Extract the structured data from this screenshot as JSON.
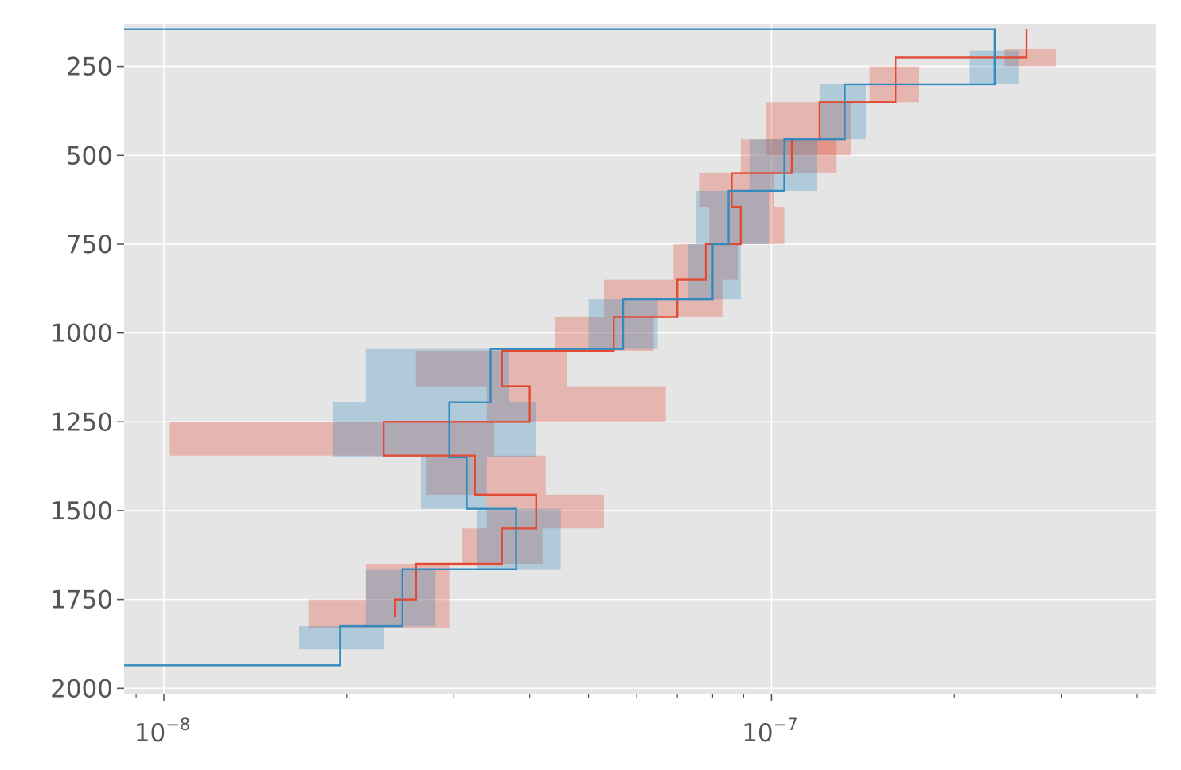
{
  "chart_data": {
    "type": "line",
    "title": "",
    "xlabel": "",
    "ylabel": "",
    "x_scale": "log",
    "y_inverted": true,
    "grid": true,
    "xlim": [
      8.6e-09,
      4.3e-07
    ],
    "ylim": [
      2015,
      130
    ],
    "x_ticks": [
      {
        "value": 1e-08,
        "base": "10",
        "exp": "−8"
      },
      {
        "value": 1e-07,
        "base": "10",
        "exp": "−7"
      }
    ],
    "y_ticks": [
      250,
      500,
      750,
      1000,
      1250,
      1500,
      1750,
      2000
    ],
    "y_tick_labels": [
      "250",
      "500",
      "750",
      "1000",
      "1250",
      "1500",
      "1750",
      "2000"
    ],
    "series": [
      {
        "color": "#E24A33",
        "step_points": [
          [
            2.63e-07,
            145
          ],
          [
            2.63e-07,
            225
          ],
          [
            1.6e-07,
            225
          ],
          [
            1.6e-07,
            350
          ],
          [
            1.2e-07,
            350
          ],
          [
            1.2e-07,
            455
          ],
          [
            1.08e-07,
            455
          ],
          [
            1.08e-07,
            550
          ],
          [
            8.6e-08,
            550
          ],
          [
            8.6e-08,
            645
          ],
          [
            8.9e-08,
            645
          ],
          [
            8.9e-08,
            750
          ],
          [
            7.8e-08,
            750
          ],
          [
            7.8e-08,
            850
          ],
          [
            7e-08,
            850
          ],
          [
            7e-08,
            955
          ],
          [
            5.5e-08,
            955
          ],
          [
            5.5e-08,
            1050
          ],
          [
            3.6e-08,
            1050
          ],
          [
            3.6e-08,
            1150
          ],
          [
            4e-08,
            1150
          ],
          [
            4e-08,
            1250
          ],
          [
            2.3e-08,
            1250
          ],
          [
            2.3e-08,
            1345
          ],
          [
            3.25e-08,
            1345
          ],
          [
            3.25e-08,
            1455
          ],
          [
            4.1e-08,
            1455
          ],
          [
            4.1e-08,
            1550
          ],
          [
            3.6e-08,
            1550
          ],
          [
            3.6e-08,
            1650
          ],
          [
            2.6e-08,
            1650
          ],
          [
            2.6e-08,
            1750
          ],
          [
            2.4e-08,
            1750
          ],
          [
            2.4e-08,
            1800
          ]
        ],
        "bands": [
          [
            2.42e-07,
            2.94e-07,
            200,
            250
          ],
          [
            1.45e-07,
            1.75e-07,
            250,
            350
          ],
          [
            9.8e-08,
            1.35e-07,
            350,
            500
          ],
          [
            8.9e-08,
            1.28e-07,
            455,
            550
          ],
          [
            7.6e-08,
            1.01e-07,
            550,
            645
          ],
          [
            7.9e-08,
            1.05e-07,
            645,
            750
          ],
          [
            6.9e-08,
            8.8e-08,
            750,
            850
          ],
          [
            5.3e-08,
            8.3e-08,
            850,
            955
          ],
          [
            4.4e-08,
            6.4e-08,
            955,
            1050
          ],
          [
            2.6e-08,
            4.6e-08,
            1050,
            1150
          ],
          [
            3.4e-08,
            6.7e-08,
            1150,
            1250
          ],
          [
            1.02e-08,
            3.5e-08,
            1250,
            1345
          ],
          [
            2.7e-08,
            4.25e-08,
            1345,
            1455
          ],
          [
            3.4e-08,
            5.3e-08,
            1455,
            1550
          ],
          [
            3.1e-08,
            4.2e-08,
            1550,
            1650
          ],
          [
            2.15e-08,
            2.95e-08,
            1650,
            1750
          ],
          [
            1.73e-08,
            2.95e-08,
            1750,
            1830
          ]
        ]
      },
      {
        "color": "#348ABD",
        "step_points": [
          [
            8.6e-09,
            145
          ],
          [
            2.33e-07,
            145
          ],
          [
            2.33e-07,
            300
          ],
          [
            1.32e-07,
            300
          ],
          [
            1.32e-07,
            455
          ],
          [
            1.05e-07,
            455
          ],
          [
            1.05e-07,
            600
          ],
          [
            8.5e-08,
            600
          ],
          [
            8.5e-08,
            750
          ],
          [
            8e-08,
            750
          ],
          [
            8e-08,
            905
          ],
          [
            5.7e-08,
            905
          ],
          [
            5.7e-08,
            1045
          ],
          [
            3.45e-08,
            1045
          ],
          [
            3.45e-08,
            1195
          ],
          [
            2.95e-08,
            1195
          ],
          [
            2.95e-08,
            1350
          ],
          [
            3.15e-08,
            1350
          ],
          [
            3.15e-08,
            1495
          ],
          [
            3.8e-08,
            1495
          ],
          [
            3.8e-08,
            1665
          ],
          [
            2.47e-08,
            1665
          ],
          [
            2.47e-08,
            1825
          ],
          [
            1.95e-08,
            1825
          ],
          [
            1.95e-08,
            1935
          ],
          [
            8.6e-09,
            1935
          ]
        ],
        "bands": [
          [
            2.12e-07,
            2.55e-07,
            205,
            300
          ],
          [
            1.2e-07,
            1.43e-07,
            300,
            455
          ],
          [
            9.2e-08,
            1.19e-07,
            455,
            600
          ],
          [
            7.5e-08,
            9.9e-08,
            600,
            750
          ],
          [
            7.3e-08,
            8.9e-08,
            750,
            905
          ],
          [
            5e-08,
            6.5e-08,
            905,
            1045
          ],
          [
            2.15e-08,
            3.7e-08,
            1045,
            1195
          ],
          [
            1.9e-08,
            4.1e-08,
            1195,
            1350
          ],
          [
            2.65e-08,
            3.4e-08,
            1350,
            1495
          ],
          [
            3.28e-08,
            4.5e-08,
            1495,
            1665
          ],
          [
            2.15e-08,
            2.8e-08,
            1665,
            1825
          ],
          [
            1.67e-08,
            2.3e-08,
            1825,
            1890
          ]
        ]
      }
    ]
  }
}
